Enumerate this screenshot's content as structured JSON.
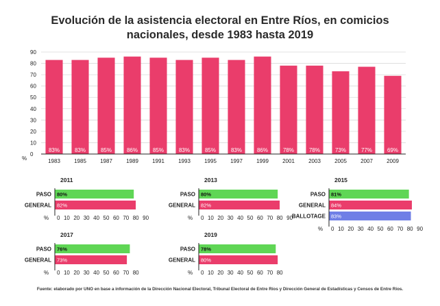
{
  "title": "Evolución de la asistencia electoral en Entre Ríos, en comicios nacionales, desde 1983 hasta 2019",
  "footer": "Fuente: elaborado por UNO en base a información de la Dirección Nacional Electoral, Tribunal Electoral de Entre Ríos y Dirección General de Estadísticas y Censos de Entre Ríos.",
  "colors": {
    "bar": "#ea3d6b",
    "paso": "#5fd655",
    "general": "#ea3d6b",
    "ballotage": "#6f7fe6",
    "grid": "#d9d9d9",
    "axis": "#222222"
  },
  "chart_data": [
    {
      "type": "bar",
      "categories": [
        "1983",
        "1985",
        "1987",
        "1989",
        "1991",
        "1993",
        "1995",
        "1997",
        "1999",
        "2001",
        "2003",
        "2005",
        "2007",
        "2009"
      ],
      "values": [
        83,
        83,
        85,
        86,
        85,
        83,
        85,
        83,
        86,
        78,
        78,
        73,
        77,
        69
      ],
      "data_labels": [
        "83%",
        "83%",
        "85%",
        "86%",
        "85%",
        "83%",
        "85%",
        "83%",
        "86%",
        "78%",
        "78%",
        "73%",
        "77%",
        "69%"
      ],
      "ylabel": "%",
      "yticks": [
        0,
        10,
        20,
        30,
        40,
        50,
        60,
        70,
        80,
        90
      ],
      "ylim": [
        0,
        90
      ],
      "grid": true
    },
    {
      "type": "bar",
      "orientation": "horizontal",
      "title": "2011",
      "categories": [
        "PASO",
        "GENERAL"
      ],
      "values": [
        80,
        82
      ],
      "data_labels": [
        "80%",
        "82%"
      ],
      "xlabel": "%",
      "xticks": [
        0,
        10,
        20,
        30,
        40,
        50,
        60,
        70,
        80,
        90
      ],
      "xlim": [
        0,
        90
      ]
    },
    {
      "type": "bar",
      "orientation": "horizontal",
      "title": "2013",
      "categories": [
        "PASO",
        "GENERAL"
      ],
      "values": [
        80,
        82
      ],
      "data_labels": [
        "80%",
        "82%"
      ],
      "xlabel": "%",
      "xticks": [
        0,
        10,
        20,
        30,
        40,
        50,
        60,
        70,
        80,
        90
      ],
      "xlim": [
        0,
        90
      ]
    },
    {
      "type": "bar",
      "orientation": "horizontal",
      "title": "2015",
      "categories": [
        "PASO",
        "GENERAL",
        "BALLOTAGE"
      ],
      "values": [
        81,
        84,
        83
      ],
      "data_labels": [
        "81%",
        "84%",
        "83%"
      ],
      "xlabel": "%",
      "xticks": [
        0,
        10,
        20,
        30,
        40,
        50,
        60,
        70,
        80,
        90
      ],
      "xlim": [
        0,
        90
      ]
    },
    {
      "type": "bar",
      "orientation": "horizontal",
      "title": "2017",
      "categories": [
        "PASO",
        "GENERAL"
      ],
      "values": [
        76,
        73
      ],
      "data_labels": [
        "76%",
        "73%"
      ],
      "xlabel": "%",
      "xticks": [
        0,
        10,
        20,
        30,
        40,
        50,
        60,
        70,
        80
      ],
      "xlim": [
        0,
        80
      ]
    },
    {
      "type": "bar",
      "orientation": "horizontal",
      "title": "2019",
      "categories": [
        "PASO",
        "GENERAL"
      ],
      "values": [
        78,
        80
      ],
      "data_labels": [
        "78%",
        "80%"
      ],
      "xlabel": "%",
      "xticks": [
        0,
        10,
        20,
        30,
        40,
        50,
        60,
        70,
        80
      ],
      "xlim": [
        0,
        80
      ]
    }
  ]
}
